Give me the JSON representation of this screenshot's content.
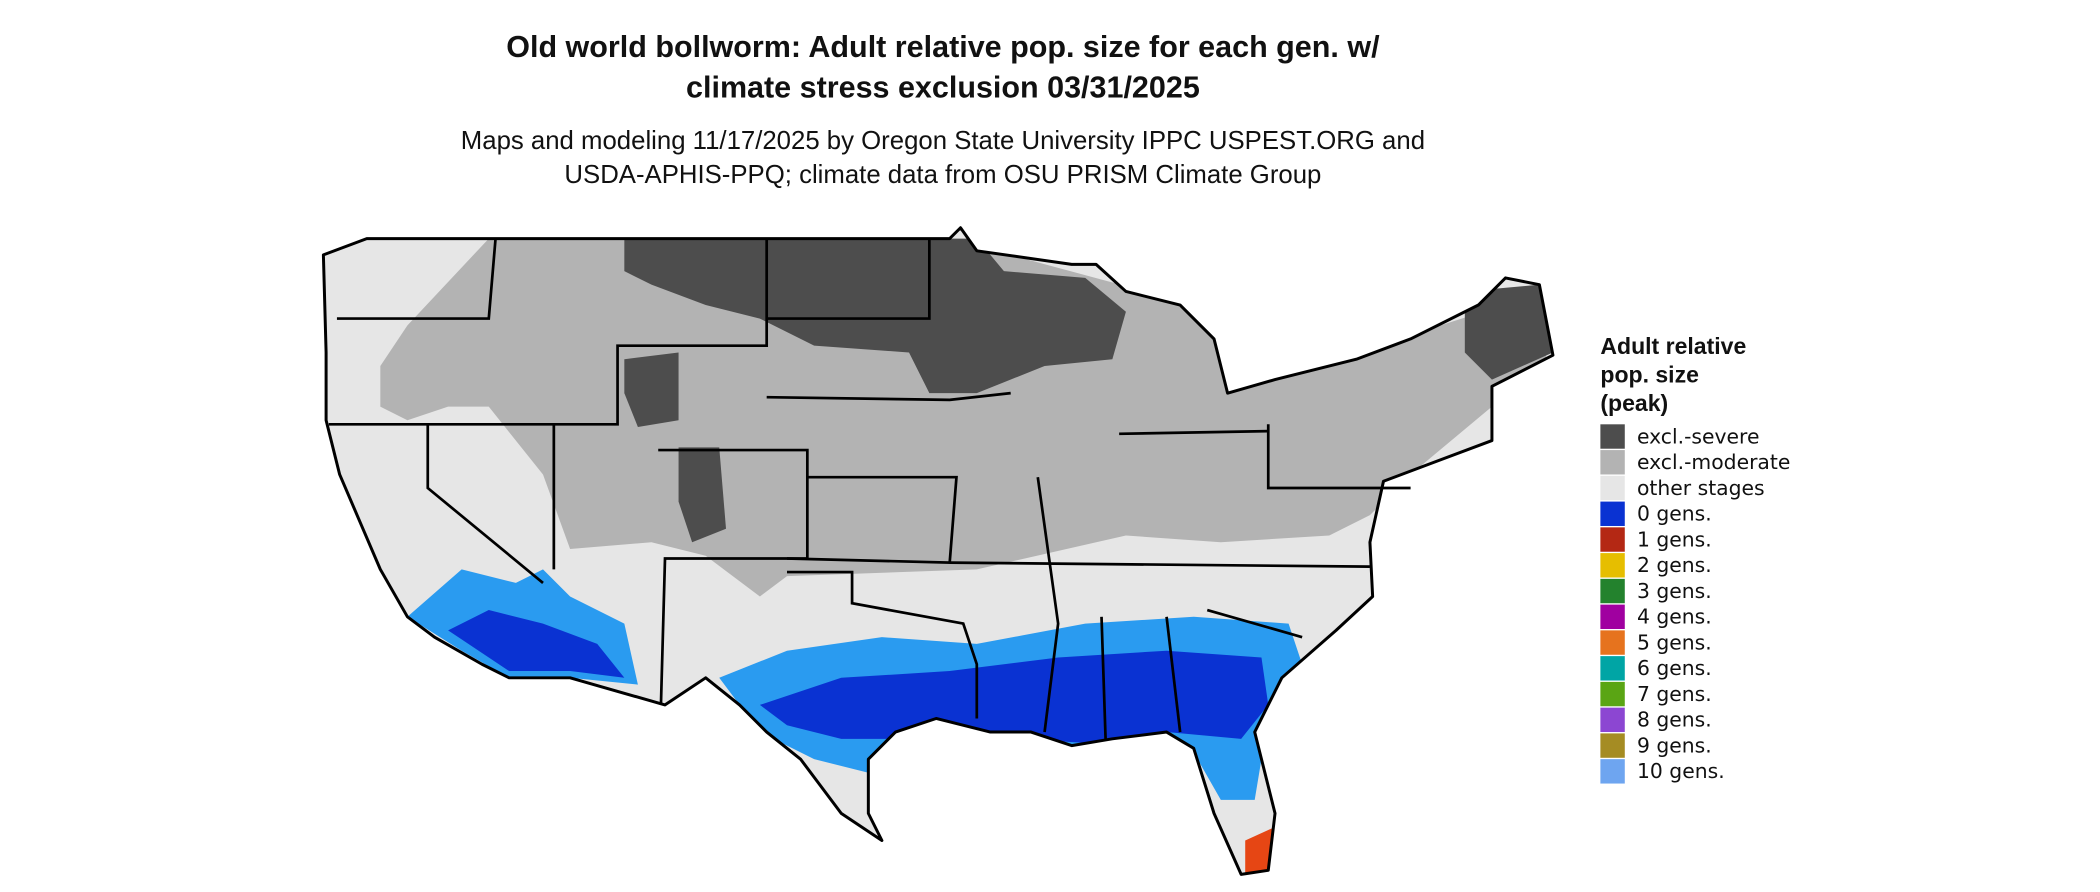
{
  "header": {
    "title": [
      "Old world bollworm: Adult relative pop. size for each gen. w/",
      "climate stress exclusion 03/31/2025"
    ],
    "subtitle": [
      "Maps and modeling 11/17/2025 by Oregon State University IPPC USPEST.ORG and",
      "USDA-APHIS-PPQ; climate data from OSU PRISM Climate Group"
    ]
  },
  "legend": {
    "title": [
      "Adult relative",
      "pop. size",
      "(peak)"
    ],
    "items": [
      {
        "label": "excl.-severe",
        "color": "#4d4d4d"
      },
      {
        "label": "excl.-moderate",
        "color": "#b3b3b3"
      },
      {
        "label": "other stages",
        "color": "#e6e6e6"
      },
      {
        "label": "0 gens.",
        "color": "#0a32d2"
      },
      {
        "label": "1 gens.",
        "color": "#b42814"
      },
      {
        "label": "2 gens.",
        "color": "#e6be00"
      },
      {
        "label": "3 gens.",
        "color": "#23822d"
      },
      {
        "label": "4 gens.",
        "color": "#a000a0"
      },
      {
        "label": "5 gens.",
        "color": "#e6731e"
      },
      {
        "label": "6 gens.",
        "color": "#00a5a5"
      },
      {
        "label": "7 gens.",
        "color": "#5aa514"
      },
      {
        "label": "8 gens.",
        "color": "#8c46d2"
      },
      {
        "label": "9 gens.",
        "color": "#a58c23"
      },
      {
        "label": "10 gens.",
        "color": "#6ea5f0"
      }
    ]
  }
}
